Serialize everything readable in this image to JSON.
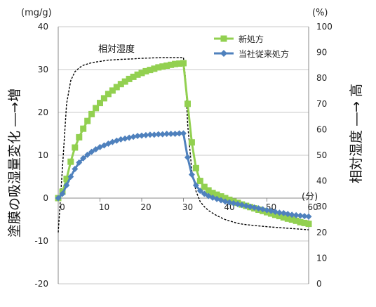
{
  "chart_data": {
    "type": "line",
    "left_axis": {
      "unit": "(mg/g)",
      "label": "塗膜の吸湿量変化 ―→増",
      "ylim": [
        -20,
        40
      ],
      "ticks": [
        -20,
        -10,
        0,
        10,
        20,
        30,
        40
      ]
    },
    "right_axis": {
      "unit": "(%)",
      "label": "相対湿度 ―→ 高",
      "ylim": [
        0,
        100
      ],
      "ticks": [
        0,
        10,
        20,
        30,
        40,
        50,
        60,
        70,
        80,
        90,
        100
      ]
    },
    "x_axis": {
      "unit": "(分)",
      "xlim": [
        0,
        60
      ],
      "ticks": [
        0,
        10,
        20,
        30,
        40,
        50,
        60
      ]
    },
    "gridlines": "horizontal",
    "legend_position": "top-right",
    "series": [
      {
        "name": "新処方",
        "axis": "left",
        "color": "#92d050",
        "marker": "square",
        "x": [
          0,
          1,
          2,
          3,
          4,
          5,
          6,
          7,
          8,
          9,
          10,
          11,
          12,
          13,
          14,
          15,
          16,
          17,
          18,
          19,
          20,
          21,
          22,
          23,
          24,
          25,
          26,
          27,
          28,
          29,
          30,
          31,
          32,
          33,
          34,
          35,
          36,
          37,
          38,
          39,
          40,
          41,
          42,
          43,
          44,
          45,
          46,
          47,
          48,
          49,
          50,
          51,
          52,
          53,
          54,
          55,
          56,
          57,
          58,
          59,
          60
        ],
        "values": [
          0,
          1.5,
          4.5,
          8.5,
          11.8,
          14.2,
          16.2,
          18.0,
          19.6,
          21.0,
          22.2,
          23.3,
          24.3,
          25.1,
          25.9,
          26.6,
          27.2,
          27.8,
          28.3,
          28.8,
          29.2,
          29.6,
          29.9,
          30.2,
          30.5,
          30.7,
          30.9,
          31.1,
          31.3,
          31.4,
          31.5,
          22.0,
          13.0,
          7.0,
          4.0,
          2.6,
          1.8,
          1.2,
          0.8,
          0.4,
          0.0,
          -0.4,
          -0.8,
          -1.1,
          -1.5,
          -1.8,
          -2.1,
          -2.4,
          -2.7,
          -3.0,
          -3.3,
          -3.6,
          -3.9,
          -4.2,
          -4.5,
          -4.8,
          -5.0,
          -5.3,
          -5.6,
          -5.8,
          -6.0
        ]
      },
      {
        "name": "当社従来処方",
        "axis": "left",
        "color": "#4f81bd",
        "marker": "diamond",
        "x": [
          0,
          1,
          2,
          3,
          4,
          5,
          6,
          7,
          8,
          9,
          10,
          11,
          12,
          13,
          14,
          15,
          16,
          17,
          18,
          19,
          20,
          21,
          22,
          23,
          24,
          25,
          26,
          27,
          28,
          29,
          30,
          31,
          32,
          33,
          34,
          35,
          36,
          37,
          38,
          39,
          40,
          41,
          42,
          43,
          44,
          45,
          46,
          47,
          48,
          49,
          50,
          51,
          52,
          53,
          54,
          55,
          56,
          57,
          58,
          59,
          60
        ],
        "values": [
          0,
          1.0,
          3.0,
          5.0,
          6.8,
          8.3,
          9.3,
          10.1,
          10.8,
          11.4,
          11.9,
          12.3,
          12.7,
          13.1,
          13.4,
          13.7,
          13.9,
          14.1,
          14.3,
          14.5,
          14.6,
          14.7,
          14.8,
          14.8,
          14.9,
          14.9,
          15.0,
          15.0,
          15.0,
          15.1,
          15.1,
          9.5,
          5.5,
          3.0,
          1.7,
          1.0,
          0.5,
          0.1,
          -0.2,
          -0.5,
          -0.8,
          -1.0,
          -1.2,
          -1.4,
          -1.6,
          -1.8,
          -2.0,
          -2.2,
          -2.4,
          -2.6,
          -2.8,
          -3.0,
          -3.2,
          -3.4,
          -3.5,
          -3.7,
          -3.9,
          -4.0,
          -4.1,
          -4.2,
          -4.3
        ]
      },
      {
        "name": "相対湿度",
        "axis": "right",
        "color": "#000000",
        "style": "dashed",
        "x": [
          0,
          1,
          2,
          3,
          4,
          5,
          6,
          7,
          8,
          10,
          12,
          15,
          18,
          20,
          25,
          29,
          30,
          30.5,
          31,
          32,
          33,
          34,
          35,
          36,
          38,
          40,
          43,
          45,
          50,
          55,
          60
        ],
        "values": [
          20,
          45,
          70,
          79,
          82.5,
          84,
          85,
          85.5,
          86,
          86.5,
          87,
          87.3,
          87.5,
          87.7,
          88,
          88,
          88,
          80,
          62,
          44,
          36,
          32,
          30,
          28.5,
          26.5,
          25,
          23.5,
          23,
          22.2,
          21.6,
          21
        ]
      }
    ],
    "annotations": [
      "相対湿度"
    ]
  }
}
